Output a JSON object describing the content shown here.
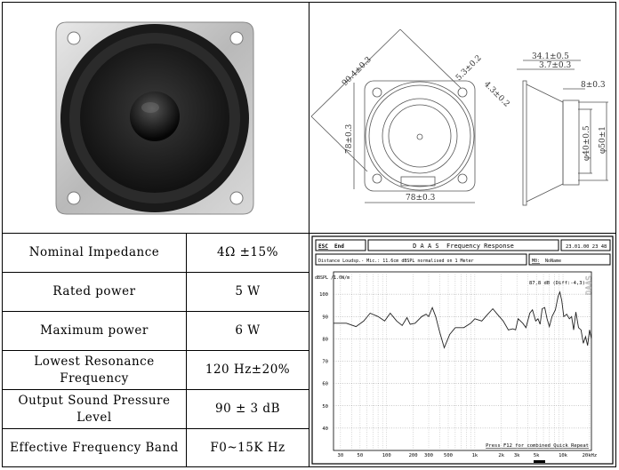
{
  "specs": [
    {
      "label": "Nominal Impedance",
      "value": "4Ω ±15%"
    },
    {
      "label": "Rated power",
      "value": "5 W"
    },
    {
      "label": "Maximum power",
      "value": "6 W"
    },
    {
      "label": "Lowest Resonance Frequency",
      "value": "120 Hz±20%"
    },
    {
      "label": "Output Sound Pressure Level",
      "value": "90 ± 3 dB"
    },
    {
      "label": "Effective Frequency Band",
      "value": "F0~15K Hz"
    }
  ],
  "drawing": {
    "diagonal": "90.4±0.3",
    "hole": "5.3±0.2",
    "hole_offset": "4.3±0.2",
    "height": "78±0.3",
    "width": "78±0.3",
    "depth": "34.1±0.5",
    "flange": "3.7±0.3",
    "magnet_depth": "8±0.3",
    "magnet_dia": "φ40±0.5",
    "frame_dia": "φ50±1"
  },
  "chart_data": {
    "type": "line",
    "header": {
      "esc": "ESC",
      "end": "End",
      "title": "D A A S  Frequency Response",
      "datetime": "23.01.00 23 48",
      "info": "Distance Loudsp.- Mic.: 11.6cm dBSPL normalised on 1 Meter",
      "mode_key": "M0:",
      "mode_name": "NoName"
    },
    "ylabel": "dBSPL /1.0W/m",
    "annotation": "87,8 dB (Diff:-4,3)",
    "watermark": "DAAS",
    "footer": "Press F12 for combined Quick Repeat",
    "x_scale": "log",
    "xlim": [
      25,
      21000
    ],
    "ylim": [
      30,
      110
    ],
    "grid": true,
    "y_ticks": [
      100,
      90,
      80,
      70,
      60,
      50,
      40
    ],
    "x_ticks": [
      {
        "v": 30,
        "label": "30"
      },
      {
        "v": 50,
        "label": "50"
      },
      {
        "v": 100,
        "label": "100"
      },
      {
        "v": 200,
        "label": "200"
      },
      {
        "v": 300,
        "label": "300"
      },
      {
        "v": 500,
        "label": "500"
      },
      {
        "v": 1000,
        "label": "1k"
      },
      {
        "v": 2000,
        "label": "2k"
      },
      {
        "v": 3000,
        "label": "3k"
      },
      {
        "v": 5000,
        "label": "5k"
      },
      {
        "v": 10000,
        "label": "10k"
      },
      {
        "v": 20000,
        "label": "20kHz"
      }
    ],
    "points": [
      [
        25,
        87
      ],
      [
        35,
        87
      ],
      [
        45,
        85.5
      ],
      [
        55,
        88
      ],
      [
        65,
        91.5
      ],
      [
        80,
        90
      ],
      [
        95,
        88
      ],
      [
        110,
        91.5
      ],
      [
        130,
        88
      ],
      [
        150,
        86
      ],
      [
        170,
        89.5
      ],
      [
        185,
        86.5
      ],
      [
        210,
        87
      ],
      [
        250,
        90
      ],
      [
        280,
        91
      ],
      [
        300,
        90
      ],
      [
        330,
        94
      ],
      [
        360,
        90
      ],
      [
        400,
        83
      ],
      [
        450,
        76
      ],
      [
        520,
        82
      ],
      [
        600,
        85
      ],
      [
        750,
        85
      ],
      [
        900,
        87
      ],
      [
        1000,
        89
      ],
      [
        1200,
        88
      ],
      [
        1400,
        91
      ],
      [
        1600,
        93.5
      ],
      [
        1800,
        91
      ],
      [
        2100,
        88
      ],
      [
        2400,
        84
      ],
      [
        2700,
        84.5
      ],
      [
        2900,
        84
      ],
      [
        3100,
        89
      ],
      [
        3500,
        87
      ],
      [
        3800,
        85
      ],
      [
        4200,
        91.5
      ],
      [
        4500,
        93
      ],
      [
        4900,
        88
      ],
      [
        5200,
        89
      ],
      [
        5500,
        86.5
      ],
      [
        5800,
        93.5
      ],
      [
        6200,
        94
      ],
      [
        6600,
        89
      ],
      [
        7000,
        85.5
      ],
      [
        7500,
        90
      ],
      [
        8200,
        93
      ],
      [
        8800,
        99
      ],
      [
        9200,
        101
      ],
      [
        9700,
        97
      ],
      [
        10200,
        90
      ],
      [
        11000,
        91
      ],
      [
        11800,
        89
      ],
      [
        12500,
        90
      ],
      [
        13200,
        84
      ],
      [
        14000,
        92
      ],
      [
        15000,
        85
      ],
      [
        16000,
        84
      ],
      [
        17000,
        78
      ],
      [
        18000,
        81
      ],
      [
        19000,
        77
      ],
      [
        20000,
        84
      ],
      [
        21000,
        80
      ]
    ]
  }
}
